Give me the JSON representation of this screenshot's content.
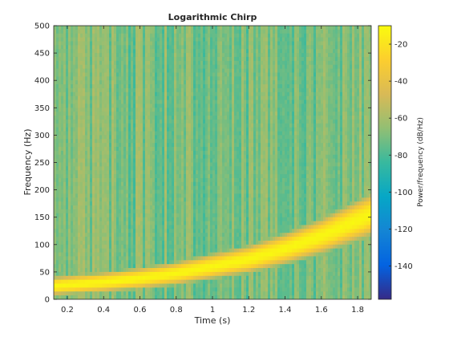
{
  "chart_data": {
    "type": "heatmap",
    "title": "Logarithmic Chirp",
    "xlabel": "Time (s)",
    "ylabel": "Frequency (Hz)",
    "colorbar_label": "Power/frequency (dB/Hz)",
    "xlim": [
      0.125,
      1.875
    ],
    "ylim": [
      0,
      500
    ],
    "x_ticks": [
      0.2,
      0.4,
      0.6,
      0.8,
      1,
      1.2,
      1.4,
      1.6,
      1.8
    ],
    "x_tick_labels": [
      "0.2",
      "0.4",
      "0.6",
      "0.8",
      "1",
      "1.2",
      "1.4",
      "1.6",
      "1.8"
    ],
    "y_ticks": [
      0,
      50,
      100,
      150,
      200,
      250,
      300,
      350,
      400,
      450,
      500
    ],
    "y_tick_labels": [
      "0",
      "50",
      "100",
      "150",
      "200",
      "250",
      "300",
      "350",
      "400",
      "450",
      "500"
    ],
    "color_range": [
      -158,
      -10
    ],
    "colorbar_ticks": [
      -20,
      -40,
      -60,
      -80,
      -100,
      -120,
      -140
    ],
    "colorbar_tick_labels": [
      "-20",
      "-40",
      "-60",
      "-80",
      "-100",
      "-120",
      "-140"
    ],
    "colormap": "parula",
    "ridge": {
      "description_time_s": [
        0.125,
        0.4,
        0.6,
        0.8,
        1.0,
        1.2,
        1.4,
        1.6,
        1.875
      ],
      "center_frequency_hz": [
        24,
        31,
        38,
        47,
        60,
        73,
        92,
        115,
        155
      ],
      "peak_power_db_hz": -12
    },
    "background_power_db_hz": -70,
    "grid": false,
    "legend": "none"
  }
}
